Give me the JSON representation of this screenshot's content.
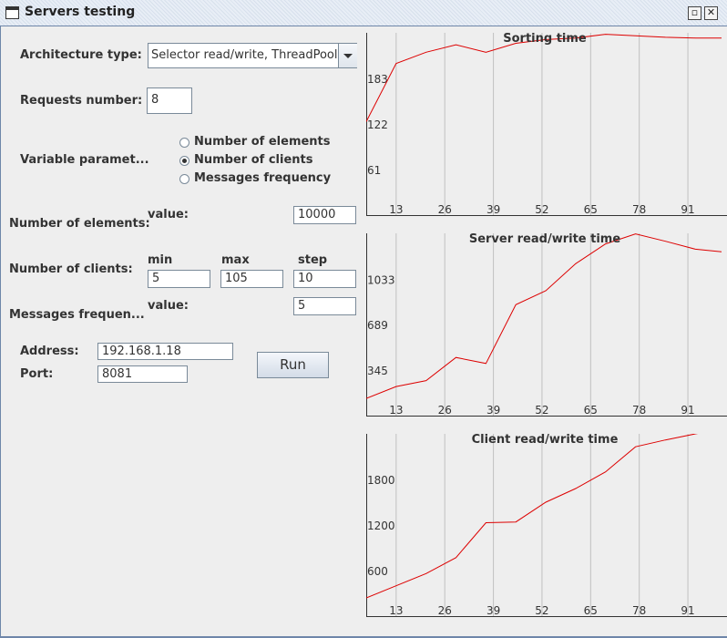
{
  "window": {
    "title": "Servers testing",
    "minimize_label": "▫",
    "close_label": "✕"
  },
  "form": {
    "architecture_label": "Architecture type:",
    "architecture_value": "Selector read/write, ThreadPool",
    "requests_label": "Requests number:",
    "requests_value": "8",
    "variable_label": "Variable paramet...",
    "radio_elements": "Number of elements",
    "radio_clients": "Number of clients",
    "radio_frequency": "Messages frequency",
    "selected_variable": "Number of clients",
    "elements_label": "Number of elements:",
    "value_label": "value:",
    "elements_value": "10000",
    "clients_label": "Number of clients:",
    "min_label": "min",
    "max_label": "max",
    "step_label": "step",
    "clients_min": "5",
    "clients_max": "105",
    "clients_step": "10",
    "frequency_label": "Messages frequen...",
    "frequency_value": "5",
    "address_label": "Address:",
    "address_value": "192.168.1.18",
    "port_label": "Port:",
    "port_value": "8081",
    "run_label": "Run"
  },
  "colors": {
    "line": "#dd0000",
    "grid": "#c0c0c0",
    "axis": "#333333"
  },
  "chart_data": [
    {
      "type": "line",
      "title": "Sorting time",
      "x_ticks": [
        13,
        26,
        39,
        52,
        65,
        78,
        91
      ],
      "y_ticks": [
        61,
        122,
        183
      ],
      "xlim": [
        5,
        100
      ],
      "ylim": [
        0,
        244
      ],
      "x": [
        5,
        13,
        21,
        29,
        37,
        45,
        53,
        61,
        69,
        77,
        85,
        93,
        100
      ],
      "y": [
        125,
        203,
        218,
        228,
        218,
        230,
        235,
        237,
        242,
        240,
        238,
        237,
        237
      ]
    },
    {
      "type": "line",
      "title": "Server read/write time",
      "x_ticks": [
        13,
        26,
        39,
        52,
        65,
        78,
        91
      ],
      "y_ticks": [
        345,
        689,
        1033
      ],
      "xlim": [
        5,
        100
      ],
      "ylim": [
        0,
        1380
      ],
      "x": [
        5,
        13,
        21,
        29,
        37,
        45,
        53,
        61,
        69,
        77,
        85,
        93,
        100
      ],
      "y": [
        130,
        220,
        265,
        440,
        395,
        840,
        945,
        1150,
        1300,
        1375,
        1320,
        1260,
        1240
      ]
    },
    {
      "type": "line",
      "title": "Client read/write time",
      "x_ticks": [
        13,
        26,
        39,
        52,
        65,
        78,
        91
      ],
      "y_ticks": [
        600,
        1200,
        1800
      ],
      "xlim": [
        5,
        100
      ],
      "ylim": [
        0,
        2400
      ],
      "x": [
        5,
        13,
        21,
        29,
        37,
        45,
        53,
        61,
        69,
        77,
        85,
        93,
        100
      ],
      "y": [
        240,
        400,
        560,
        770,
        1230,
        1240,
        1500,
        1680,
        1900,
        2230,
        2320,
        2400,
        2460
      ]
    }
  ]
}
